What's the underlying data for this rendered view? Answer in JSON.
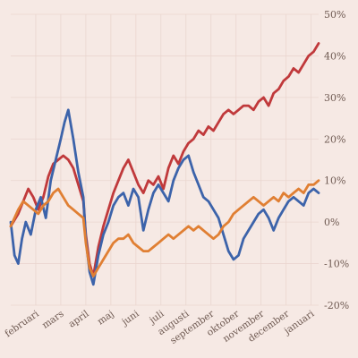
{
  "chart_data": {
    "type": "line",
    "title": "",
    "xlabel": "",
    "ylabel": "",
    "ylim": [
      -20,
      50
    ],
    "xlim": [
      0,
      12.3
    ],
    "y_ticks": [
      -20,
      -10,
      0,
      10,
      20,
      30,
      40,
      50
    ],
    "y_tick_labels": [
      "-20%",
      "-10%",
      "0%",
      "10%",
      "20%",
      "30%",
      "40%",
      "50%"
    ],
    "x_ticks": [
      1,
      2,
      3,
      4,
      5,
      6,
      7,
      8,
      9,
      10,
      11,
      12
    ],
    "x_tick_labels": [
      "februari",
      "mars",
      "april",
      "maj",
      "juni",
      "juli",
      "augusti",
      "september",
      "oktober",
      "november",
      "december",
      "januari"
    ],
    "grid": true,
    "legend": "none",
    "series": [
      {
        "color": "#c0393b",
        "x": [
          0,
          0.3,
          0.5,
          0.7,
          0.9,
          1.1,
          1.3,
          1.5,
          1.7,
          1.9,
          2.1,
          2.3,
          2.5,
          2.7,
          2.9,
          3.0,
          3.15,
          3.3,
          3.5,
          3.7,
          3.9,
          4.1,
          4.3,
          4.5,
          4.7,
          4.9,
          5.1,
          5.3,
          5.5,
          5.7,
          5.9,
          6.1,
          6.3,
          6.5,
          6.7,
          6.9,
          7.1,
          7.3,
          7.5,
          7.7,
          7.9,
          8.1,
          8.3,
          8.5,
          8.7,
          8.9,
          9.1,
          9.3,
          9.5,
          9.7,
          9.9,
          10.1,
          10.3,
          10.5,
          10.7,
          10.9,
          11.1,
          11.3,
          11.5,
          11.7,
          11.9,
          12.1,
          12.3
        ],
        "y": [
          -1,
          2,
          5,
          8,
          6,
          3,
          6,
          11,
          14,
          15,
          16,
          15,
          13,
          9,
          5,
          -3,
          -10,
          -13,
          -6,
          -1,
          3,
          7,
          10,
          13,
          15,
          12,
          9,
          7,
          10,
          9,
          11,
          8,
          13,
          16,
          14,
          17,
          19,
          20,
          22,
          21,
          23,
          22,
          24,
          26,
          27,
          26,
          27,
          28,
          28,
          27,
          29,
          30,
          28,
          31,
          32,
          34,
          35,
          37,
          36,
          38,
          40,
          41,
          43
        ]
      },
      {
        "color": "#3c63aa",
        "x": [
          0,
          0.15,
          0.3,
          0.45,
          0.6,
          0.8,
          1.0,
          1.2,
          1.4,
          1.6,
          1.8,
          2.0,
          2.15,
          2.3,
          2.5,
          2.7,
          2.9,
          3.0,
          3.15,
          3.3,
          3.5,
          3.7,
          3.9,
          4.1,
          4.3,
          4.5,
          4.7,
          4.9,
          5.1,
          5.3,
          5.5,
          5.7,
          5.9,
          6.1,
          6.3,
          6.5,
          6.7,
          6.9,
          7.1,
          7.3,
          7.5,
          7.7,
          7.9,
          8.1,
          8.3,
          8.5,
          8.7,
          8.9,
          9.1,
          9.3,
          9.5,
          9.7,
          9.9,
          10.1,
          10.3,
          10.5,
          10.7,
          10.9,
          11.1,
          11.3,
          11.5,
          11.7,
          11.9,
          12.1,
          12.3
        ],
        "y": [
          0,
          -8,
          -10,
          -4,
          0,
          -3,
          3,
          6,
          1,
          10,
          15,
          20,
          24,
          27,
          20,
          12,
          6,
          -4,
          -12,
          -15,
          -8,
          -3,
          0,
          4,
          6,
          7,
          4,
          8,
          6,
          -2,
          3,
          7,
          9,
          7,
          5,
          10,
          13,
          15,
          16,
          12,
          9,
          6,
          5,
          3,
          1,
          -3,
          -7,
          -9,
          -8,
          -4,
          -2,
          0,
          2,
          3,
          1,
          -2,
          1,
          3,
          5,
          6,
          5,
          4,
          7,
          8,
          7
        ]
      },
      {
        "color": "#e07f33",
        "x": [
          0,
          0.3,
          0.5,
          0.7,
          0.9,
          1.1,
          1.3,
          1.5,
          1.7,
          1.9,
          2.1,
          2.3,
          2.5,
          2.7,
          2.9,
          3.0,
          3.15,
          3.3,
          3.5,
          3.7,
          3.9,
          4.1,
          4.3,
          4.5,
          4.7,
          4.9,
          5.1,
          5.3,
          5.5,
          5.7,
          5.9,
          6.1,
          6.3,
          6.5,
          6.7,
          6.9,
          7.1,
          7.3,
          7.5,
          7.7,
          7.9,
          8.1,
          8.3,
          8.5,
          8.7,
          8.9,
          9.1,
          9.3,
          9.5,
          9.7,
          9.9,
          10.1,
          10.3,
          10.5,
          10.7,
          10.9,
          11.1,
          11.3,
          11.5,
          11.7,
          11.9,
          12.1,
          12.3
        ],
        "y": [
          -1,
          3,
          5,
          4,
          3,
          2,
          4,
          5,
          7,
          8,
          6,
          4,
          3,
          2,
          1,
          -5,
          -11,
          -13,
          -11,
          -9,
          -7,
          -5,
          -4,
          -4,
          -3,
          -5,
          -6,
          -7,
          -7,
          -6,
          -5,
          -4,
          -3,
          -4,
          -3,
          -2,
          -1,
          -2,
          -1,
          -2,
          -3,
          -4,
          -3,
          -1,
          0,
          2,
          3,
          4,
          5,
          6,
          5,
          4,
          5,
          6,
          5,
          7,
          6,
          7,
          8,
          7,
          9,
          9,
          10
        ]
      }
    ]
  }
}
